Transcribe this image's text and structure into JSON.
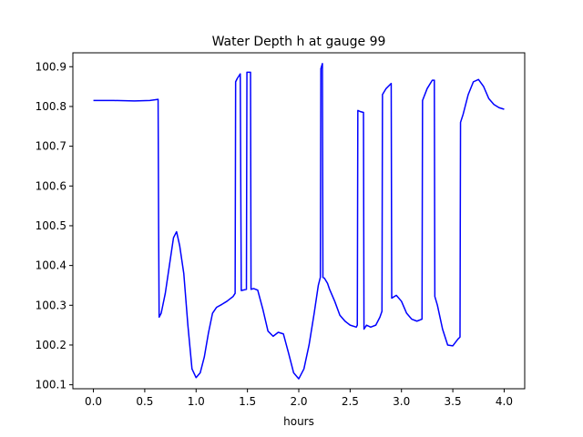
{
  "chart_data": {
    "type": "line",
    "title": "Water Depth h at gauge 99",
    "xlabel": "hours",
    "ylabel": "",
    "xlim": [
      -0.2,
      4.2
    ],
    "ylim": [
      100.09,
      100.935
    ],
    "xticks": [
      0.0,
      0.5,
      1.0,
      1.5,
      2.0,
      2.5,
      3.0,
      3.5,
      4.0
    ],
    "xtick_labels": [
      "0.0",
      "0.5",
      "1.0",
      "1.5",
      "2.0",
      "2.5",
      "3.0",
      "3.5",
      "4.0"
    ],
    "yticks": [
      100.1,
      100.2,
      100.3,
      100.4,
      100.5,
      100.6,
      100.7,
      100.8,
      100.9
    ],
    "ytick_labels": [
      "100.1",
      "100.2",
      "100.3",
      "100.4",
      "100.5",
      "100.6",
      "100.7",
      "100.8",
      "100.9"
    ],
    "grid": false,
    "legend": "none",
    "series": [
      {
        "color": "#0000ff",
        "x": [
          0.0,
          0.2,
          0.4,
          0.55,
          0.63,
          0.635,
          0.64,
          0.66,
          0.7,
          0.74,
          0.78,
          0.81,
          0.84,
          0.88,
          0.92,
          0.96,
          1.0,
          1.04,
          1.08,
          1.12,
          1.16,
          1.2,
          1.25,
          1.3,
          1.36,
          1.38,
          1.385,
          1.4,
          1.43,
          1.435,
          1.44,
          1.49,
          1.495,
          1.53,
          1.535,
          1.56,
          1.6,
          1.65,
          1.7,
          1.75,
          1.8,
          1.85,
          1.9,
          1.95,
          2.0,
          2.05,
          2.1,
          2.15,
          2.19,
          2.21,
          2.215,
          2.23,
          2.235,
          2.25,
          2.28,
          2.3,
          2.35,
          2.4,
          2.45,
          2.5,
          2.56,
          2.57,
          2.575,
          2.6,
          2.63,
          2.635,
          2.66,
          2.7,
          2.75,
          2.79,
          2.81,
          2.815,
          2.85,
          2.9,
          2.905,
          2.95,
          3.0,
          3.05,
          3.1,
          3.15,
          3.2,
          3.205,
          3.25,
          3.3,
          3.32,
          3.325,
          3.35,
          3.4,
          3.45,
          3.5,
          3.55,
          3.57,
          3.575,
          3.6,
          3.65,
          3.7,
          3.75,
          3.8,
          3.85,
          3.9,
          3.95,
          4.0
        ],
        "y": [
          100.815,
          100.815,
          100.814,
          100.815,
          100.818,
          100.5,
          100.27,
          100.28,
          100.33,
          100.4,
          100.47,
          100.485,
          100.45,
          100.38,
          100.25,
          100.14,
          100.118,
          100.13,
          100.17,
          100.23,
          100.28,
          100.295,
          100.302,
          100.31,
          100.322,
          100.33,
          100.862,
          100.87,
          100.882,
          100.6,
          100.337,
          100.34,
          100.886,
          100.886,
          100.34,
          100.342,
          100.338,
          100.29,
          100.235,
          100.222,
          100.232,
          100.228,
          100.18,
          100.13,
          100.115,
          100.14,
          100.2,
          100.28,
          100.35,
          100.37,
          100.895,
          100.908,
          100.37,
          100.368,
          100.355,
          100.34,
          100.31,
          100.275,
          100.26,
          100.25,
          100.245,
          100.25,
          100.79,
          100.787,
          100.785,
          100.24,
          100.25,
          100.245,
          100.25,
          100.27,
          100.285,
          100.83,
          100.845,
          100.858,
          100.318,
          100.325,
          100.31,
          100.28,
          100.265,
          100.26,
          100.265,
          100.815,
          100.845,
          100.866,
          100.866,
          100.322,
          100.3,
          100.24,
          100.2,
          100.198,
          100.215,
          100.22,
          100.76,
          100.78,
          100.83,
          100.862,
          100.868,
          100.85,
          100.82,
          100.805,
          100.797,
          100.793
        ]
      }
    ]
  }
}
